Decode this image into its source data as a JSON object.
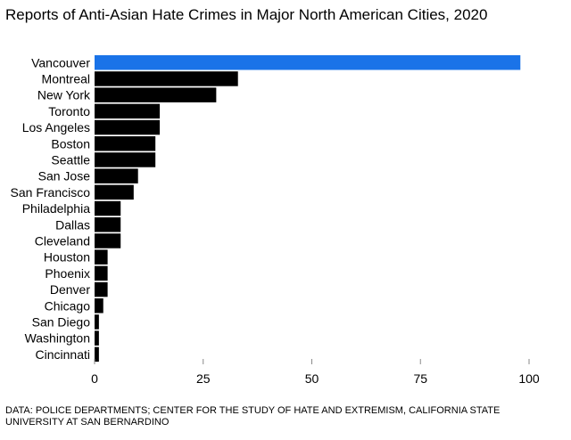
{
  "title": "Reports of Anti-Asian Hate Crimes in Major North American Cities, 2020",
  "source": "DATA: POLICE DEPARTMENTS; CENTER FOR THE STUDY OF HATE AND EXTREMISM, CALIFORNIA STATE UNIVERSITY AT SAN BERNARDINO",
  "colors": {
    "highlight": "#1a73e8",
    "bar": "#000000",
    "tick": "#8a8a8a"
  },
  "chart_data": {
    "type": "bar",
    "orientation": "horizontal",
    "title": "Reports of Anti-Asian Hate Crimes in Major North American Cities, 2020",
    "xlabel": "",
    "ylabel": "",
    "xlim": [
      0,
      100
    ],
    "xticks": [
      0,
      25,
      50,
      75,
      100
    ],
    "grid": false,
    "highlight": "Vancouver",
    "categories": [
      "Vancouver",
      "Montreal",
      "New York",
      "Toronto",
      "Los Angeles",
      "Boston",
      "Seattle",
      "San Jose",
      "San Francisco",
      "Philadelphia",
      "Dallas",
      "Cleveland",
      "Houston",
      "Phoenix",
      "Denver",
      "Chicago",
      "San Diego",
      "Washington",
      "Cincinnati"
    ],
    "values": [
      98,
      33,
      28,
      15,
      15,
      14,
      14,
      10,
      9,
      6,
      6,
      6,
      3,
      3,
      3,
      2,
      1,
      1,
      1
    ]
  }
}
